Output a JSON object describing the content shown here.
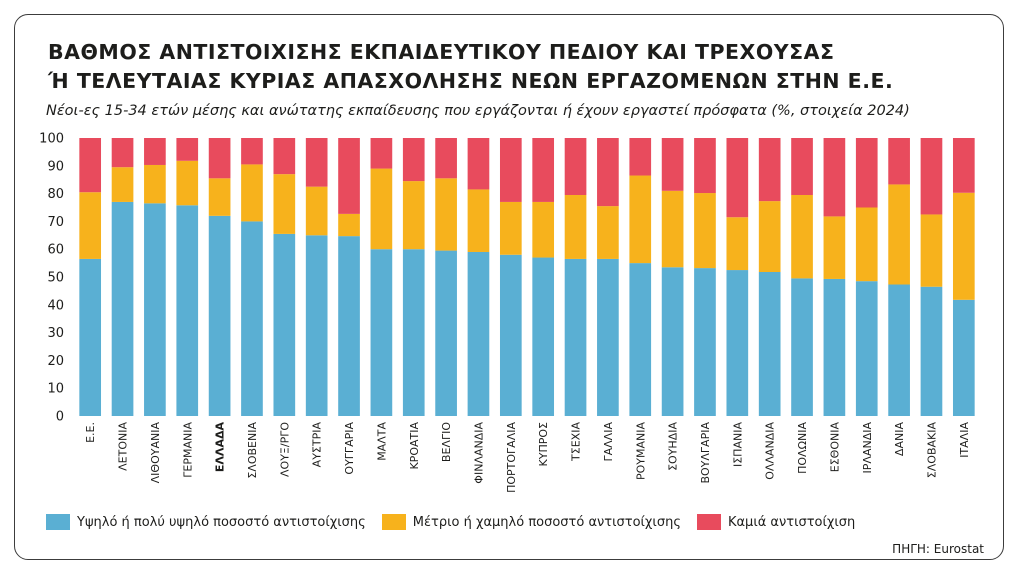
{
  "title_line1": "ΒΑΘΜΟΣ ΑΝΤΙΣΤΟΙΧΙΣΗΣ ΕΚΠΑΙΔΕΥΤΙΚΟΥ ΠΕΔΙΟΥ ΚΑΙ ΤΡΕΧΟΥΣΑΣ",
  "title_line2": "Ή ΤΕΛΕΥΤΑΙΑΣ ΚΥΡΙΑΣ ΑΠΑΣΧΟΛΗΣΗΣ ΝΕΩΝ ΕΡΓΑΖΟΜΕΝΩΝ ΣΤΗΝ Ε.Ε.",
  "subtitle": "Νέοι-ες 15-34 ετών μέσης και ανώτατης εκπαίδευσης που εργάζονται ή έχουν εργαστεί πρόσφατα (%, στοιχεία 2024)",
  "source": "ΠΗΓΗ: Eurostat",
  "chart_data": {
    "type": "bar",
    "stacked": true,
    "ylim": [
      0,
      100
    ],
    "yticks": [
      0,
      10,
      20,
      30,
      40,
      50,
      60,
      70,
      80,
      90,
      100
    ],
    "grid": false,
    "legend_position": "bottom",
    "highlight_category": "ΕΛΛΑΔΑ",
    "categories": [
      "Ε.Ε.",
      "ΛΕΤΟΝΙΑ",
      "ΛΙΘΟΥΑΝΙΑ",
      "ΓΕΡΜΑΝΙΑ",
      "ΕΛΛΑΔΑ",
      "ΣΛΟΒΕΝΙΑ",
      "ΛΟΥΞ/ΡΓΟ",
      "ΑΥΣΤΡΙΑ",
      "ΟΥΓΓΑΡΙΑ",
      "ΜΑΛΤΑ",
      "ΚΡΟΑΤΙΑ",
      "ΒΕΛΓΙΟ",
      "ΦΙΝΛΑΝΔΙΑ",
      "ΠΟΡΤΟΓΑΛΙΑ",
      "ΚΥΠΡΟΣ",
      "ΤΣΕΧΙΑ",
      "ΓΑΛΛΙΑ",
      "ΡΟΥΜΑΝΙΑ",
      "ΣΟΥΗΔΙΑ",
      "ΒΟΥΛΓΑΡΙΑ",
      "ΙΣΠΑΝΙΑ",
      "ΟΛΛΑΝΔΙΑ",
      "ΠΟΛΩΝΙΑ",
      "ΕΣΘΟΝΙΑ",
      "ΙΡΛΑΝΔΙΑ",
      "ΔΑΝΙΑ",
      "ΣΛΟΒΑΚΙΑ",
      "ΙΤΑΛΙΑ"
    ],
    "series": [
      {
        "name": "Υψηλό ή πολύ υψηλό ποσοστό αντιστοίχισης",
        "color": "#5aafd3",
        "values": [
          56.5,
          77,
          76.5,
          75.8,
          72,
          70,
          65.5,
          65,
          64.7,
          60,
          60,
          59.5,
          59,
          58,
          57,
          56.5,
          56.5,
          55,
          53.5,
          53.2,
          52.5,
          51.8,
          49.5,
          49.3,
          48.5,
          47.3,
          46.5,
          41.8
        ]
      },
      {
        "name": "Μέτριο ή χαμηλό ποσοστό αντιστοίχισης",
        "color": "#f7b21c",
        "values": [
          24,
          12.5,
          13.8,
          16,
          13.5,
          20.5,
          21.5,
          17.5,
          8,
          29,
          24.5,
          26,
          22.5,
          19,
          20,
          23,
          19,
          31.5,
          27.5,
          27,
          19,
          25.5,
          30,
          22.5,
          26.5,
          36,
          26,
          38.5
        ]
      },
      {
        "name": "Καμιά αντιστοίχιση",
        "color": "#e84b5d",
        "values": [
          19.5,
          10.5,
          9.7,
          8.2,
          14.5,
          9.5,
          13,
          17.5,
          27.3,
          11,
          15.5,
          14.5,
          18.5,
          23,
          23,
          20.5,
          24.5,
          13.5,
          19,
          19.8,
          28.5,
          22.7,
          20.5,
          28.2,
          25,
          16.7,
          27.5,
          19.7
        ]
      }
    ]
  }
}
